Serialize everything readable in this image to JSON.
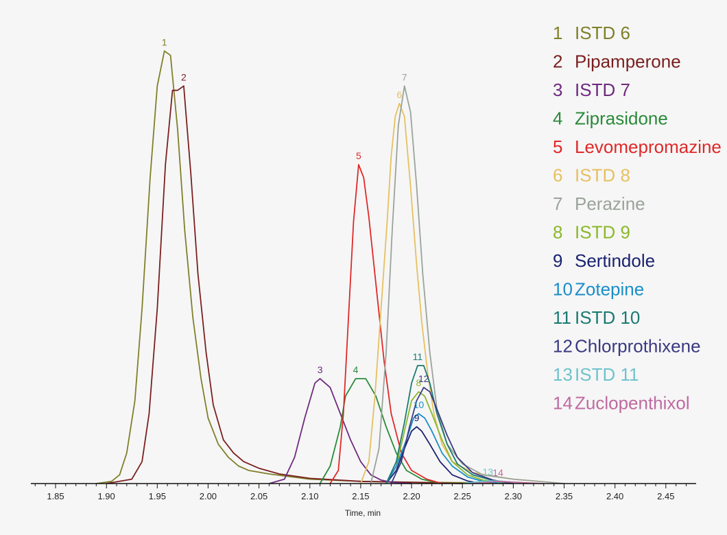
{
  "chart_data": {
    "type": "line",
    "title": "",
    "xlabel": "Time, min",
    "ylabel": "",
    "xlim": [
      1.82,
      2.48
    ],
    "ylim": [
      0,
      1.0
    ],
    "grid": false,
    "legend_position": "top-right",
    "x_ticks": [
      "1.85",
      "1.90",
      "1.95",
      "2.00",
      "2.05",
      "2.10",
      "2.15",
      "2.20",
      "2.25",
      "2.30",
      "2.35",
      "2.40",
      "2.45"
    ],
    "series": [
      {
        "label": "1",
        "name": "ISTD 6",
        "color": "#7f7f2a",
        "x": [
          1.89,
          1.905,
          1.913,
          1.92,
          1.928,
          1.935,
          1.943,
          1.95,
          1.957,
          1.963,
          1.97,
          1.977,
          1.985,
          1.993,
          2.0,
          2.01,
          2.02,
          2.03,
          2.04,
          2.06,
          2.08,
          2.1,
          2.15,
          2.2,
          2.25,
          2.3
        ],
        "y": [
          0.0,
          0.005,
          0.02,
          0.07,
          0.19,
          0.4,
          0.7,
          0.91,
          0.99,
          0.98,
          0.81,
          0.58,
          0.38,
          0.24,
          0.15,
          0.09,
          0.06,
          0.04,
          0.03,
          0.022,
          0.016,
          0.01,
          0.005,
          0.003,
          0.002,
          0.0
        ]
      },
      {
        "label": "2",
        "name": "Pipamperone",
        "color": "#7a1f1f",
        "x": [
          1.9,
          1.925,
          1.935,
          1.942,
          1.95,
          1.958,
          1.965,
          1.97,
          1.976,
          1.983,
          1.99,
          1.998,
          2.005,
          2.015,
          2.025,
          2.035,
          2.05,
          2.07,
          2.1,
          2.15,
          2.2,
          2.25
        ],
        "y": [
          0.0,
          0.01,
          0.05,
          0.16,
          0.4,
          0.73,
          0.9,
          0.9,
          0.91,
          0.71,
          0.48,
          0.3,
          0.18,
          0.1,
          0.07,
          0.05,
          0.035,
          0.022,
          0.012,
          0.005,
          0.003,
          0.0
        ]
      },
      {
        "label": "3",
        "name": "ISTD 7",
        "color": "#6e2a7e",
        "x": [
          2.06,
          2.075,
          2.085,
          2.095,
          2.105,
          2.11,
          2.12,
          2.13,
          2.14,
          2.15,
          2.16,
          2.17,
          2.18,
          2.2
        ],
        "y": [
          0.0,
          0.01,
          0.06,
          0.15,
          0.23,
          0.24,
          0.22,
          0.16,
          0.1,
          0.05,
          0.02,
          0.008,
          0.003,
          0.0
        ]
      },
      {
        "label": "4",
        "name": "Ziprasidone",
        "color": "#2a8a3a",
        "x": [
          2.11,
          2.12,
          2.13,
          2.135,
          2.145,
          2.155,
          2.165,
          2.175,
          2.185,
          2.195,
          2.21,
          2.23
        ],
        "y": [
          0.0,
          0.04,
          0.13,
          0.2,
          0.24,
          0.24,
          0.2,
          0.13,
          0.07,
          0.03,
          0.01,
          0.0
        ]
      },
      {
        "label": "5",
        "name": "Levomepromazine",
        "color": "#e02828",
        "x": [
          2.12,
          2.128,
          2.133,
          2.138,
          2.143,
          2.148,
          2.153,
          2.158,
          2.163,
          2.168,
          2.173,
          2.18,
          2.19,
          2.2,
          2.215,
          2.23
        ],
        "y": [
          0.0,
          0.03,
          0.16,
          0.38,
          0.6,
          0.73,
          0.7,
          0.61,
          0.5,
          0.39,
          0.28,
          0.16,
          0.07,
          0.03,
          0.01,
          0.0
        ]
      },
      {
        "label": "6",
        "name": "ISTD 8",
        "color": "#e6c060",
        "x": [
          2.15,
          2.158,
          2.164,
          2.17,
          2.176,
          2.18,
          2.184,
          2.188,
          2.193,
          2.199,
          2.205,
          2.21,
          2.216,
          2.222,
          2.23,
          2.24,
          2.26,
          2.3,
          2.35
        ],
        "y": [
          0.0,
          0.05,
          0.2,
          0.4,
          0.6,
          0.75,
          0.84,
          0.87,
          0.84,
          0.68,
          0.5,
          0.37,
          0.25,
          0.16,
          0.09,
          0.05,
          0.025,
          0.01,
          0.0
        ]
      },
      {
        "label": "7",
        "name": "Perazine",
        "color": "#9aa39a",
        "x": [
          2.16,
          2.168,
          2.175,
          2.181,
          2.187,
          2.193,
          2.199,
          2.205,
          2.211,
          2.218,
          2.225,
          2.235,
          2.25,
          2.27,
          2.3,
          2.35
        ],
        "y": [
          0.0,
          0.08,
          0.3,
          0.58,
          0.82,
          0.91,
          0.85,
          0.68,
          0.48,
          0.3,
          0.17,
          0.09,
          0.045,
          0.02,
          0.01,
          0.0
        ]
      },
      {
        "label": "8",
        "name": "ISTD 9",
        "color": "#8ab82a",
        "x": [
          2.175,
          2.185,
          2.193,
          2.2,
          2.207,
          2.213,
          2.22,
          2.23,
          2.24,
          2.255,
          2.27,
          2.3
        ],
        "y": [
          0.0,
          0.04,
          0.12,
          0.19,
          0.21,
          0.2,
          0.16,
          0.1,
          0.05,
          0.02,
          0.008,
          0.0
        ]
      },
      {
        "label": "9",
        "name": "Sertindole",
        "color": "#1a2270",
        "x": [
          2.175,
          2.185,
          2.193,
          2.2,
          2.205,
          2.21,
          2.218,
          2.228,
          2.24,
          2.255,
          2.27
        ],
        "y": [
          0.0,
          0.03,
          0.08,
          0.12,
          0.13,
          0.12,
          0.09,
          0.05,
          0.02,
          0.006,
          0.0
        ]
      },
      {
        "label": "10",
        "name": "Zotepine",
        "color": "#1a8ec8",
        "x": [
          2.175,
          2.185,
          2.195,
          2.202,
          2.207,
          2.213,
          2.22,
          2.23,
          2.24,
          2.255,
          2.27,
          2.29
        ],
        "y": [
          0.0,
          0.04,
          0.1,
          0.15,
          0.16,
          0.15,
          0.12,
          0.07,
          0.04,
          0.015,
          0.005,
          0.0
        ]
      },
      {
        "label": "11",
        "name": "ISTD 10",
        "color": "#1a7a72",
        "x": [
          2.175,
          2.185,
          2.193,
          2.2,
          2.206,
          2.212,
          2.218,
          2.225,
          2.235,
          2.245,
          2.26,
          2.28,
          2.3
        ],
        "y": [
          0.0,
          0.05,
          0.14,
          0.23,
          0.27,
          0.27,
          0.23,
          0.16,
          0.09,
          0.045,
          0.02,
          0.007,
          0.0
        ]
      },
      {
        "label": "12",
        "name": "Chlorprothixene",
        "color": "#3a3a82",
        "x": [
          2.18,
          2.19,
          2.198,
          2.205,
          2.212,
          2.218,
          2.225,
          2.235,
          2.245,
          2.26,
          2.28,
          2.3
        ],
        "y": [
          0.0,
          0.05,
          0.13,
          0.19,
          0.22,
          0.21,
          0.17,
          0.11,
          0.06,
          0.025,
          0.008,
          0.0
        ]
      },
      {
        "label": "13",
        "name": "ISTD 11",
        "color": "#6ec3cc",
        "x": [
          2.25,
          2.265,
          2.275,
          2.285,
          2.3,
          2.32
        ],
        "y": [
          0.0,
          0.004,
          0.006,
          0.006,
          0.003,
          0.0
        ]
      },
      {
        "label": "14",
        "name": "Zuclopenthixol",
        "color": "#c06aa0",
        "x": [
          2.26,
          2.275,
          2.285,
          2.295,
          2.31,
          2.33
        ],
        "y": [
          0.0,
          0.003,
          0.005,
          0.004,
          0.002,
          0.0
        ]
      }
    ]
  }
}
